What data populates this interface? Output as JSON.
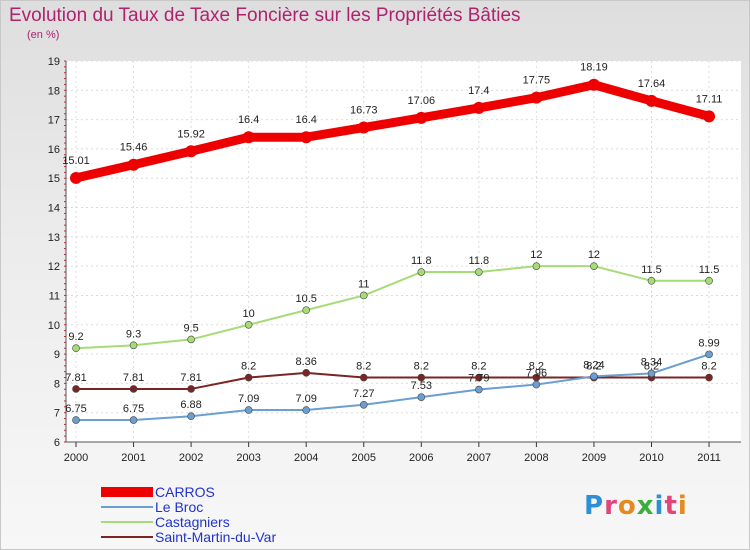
{
  "title": "Evolution du Taux de Taxe Foncière sur les Propriétés Bâties",
  "unit_label": "(en %)",
  "brand": {
    "name": "Proxiti",
    "letter_colors": [
      "#2e8fd6",
      "#e0457b",
      "#e58a1f",
      "#3cae3c",
      "#2e8fd6",
      "#e0457b",
      "#e58a1f"
    ]
  },
  "chart_data": {
    "type": "line",
    "title": "Evolution du Taux de Taxe Foncière sur les Propriétés Bâties",
    "ylabel": "(en %)",
    "xlabel": "",
    "x": [
      "2000",
      "2001",
      "2002",
      "2003",
      "2004",
      "2005",
      "2006",
      "2007",
      "2008",
      "2009",
      "2010",
      "2011"
    ],
    "ylim": [
      6,
      19
    ],
    "y_ticks": [
      "6",
      "7",
      "8",
      "9",
      "10",
      "11",
      "12",
      "13",
      "14",
      "15",
      "16",
      "17",
      "18",
      "19"
    ],
    "grid": true,
    "legend_position": "bottom-left",
    "series": [
      {
        "name": "CARROS",
        "color": "#ee0000",
        "values": [
          15.01,
          15.46,
          15.92,
          16.4,
          16.4,
          16.73,
          17.06,
          17.4,
          17.75,
          18.19,
          17.64,
          17.11
        ],
        "labels": [
          "15.01",
          "15.46",
          "15.92",
          "16.4",
          "16.4",
          "16.73",
          "17.06",
          "17.4",
          "17.75",
          "18.19",
          "17.64",
          "17.11"
        ]
      },
      {
        "name": "Le Broc",
        "color": "#6a9fd0",
        "values": [
          6.75,
          6.75,
          6.88,
          7.09,
          7.09,
          7.27,
          7.53,
          7.79,
          7.96,
          8.24,
          8.34,
          8.99
        ],
        "labels": [
          "6.75",
          "6.75",
          "6.88",
          "7.09",
          "7.09",
          "7.27",
          "7.53",
          "7.79",
          "7.96",
          "8.24",
          "8.34",
          "8.99"
        ]
      },
      {
        "name": "Castagniers",
        "color": "#a6dc78",
        "values": [
          9.2,
          9.3,
          9.5,
          10,
          10.5,
          11,
          11.8,
          11.8,
          12,
          12,
          11.5,
          11.5
        ],
        "labels": [
          "9.2",
          "9.3",
          "9.5",
          "10",
          "10.5",
          "11",
          "11.8",
          "11.8",
          "12",
          "12",
          "11.5",
          "11.5"
        ]
      },
      {
        "name": "Saint-Martin-du-Var",
        "color": "#7a2424",
        "values": [
          7.81,
          7.81,
          7.81,
          8.2,
          8.36,
          8.2,
          8.2,
          8.2,
          8.2,
          8.2,
          8.2,
          8.2
        ],
        "labels": [
          "7.81",
          "7.81",
          "7.81",
          "8.2",
          "8.36",
          "8.2",
          "8.2",
          "8.2",
          "8.2",
          "8.2",
          "8.2",
          "8.2"
        ]
      }
    ]
  }
}
